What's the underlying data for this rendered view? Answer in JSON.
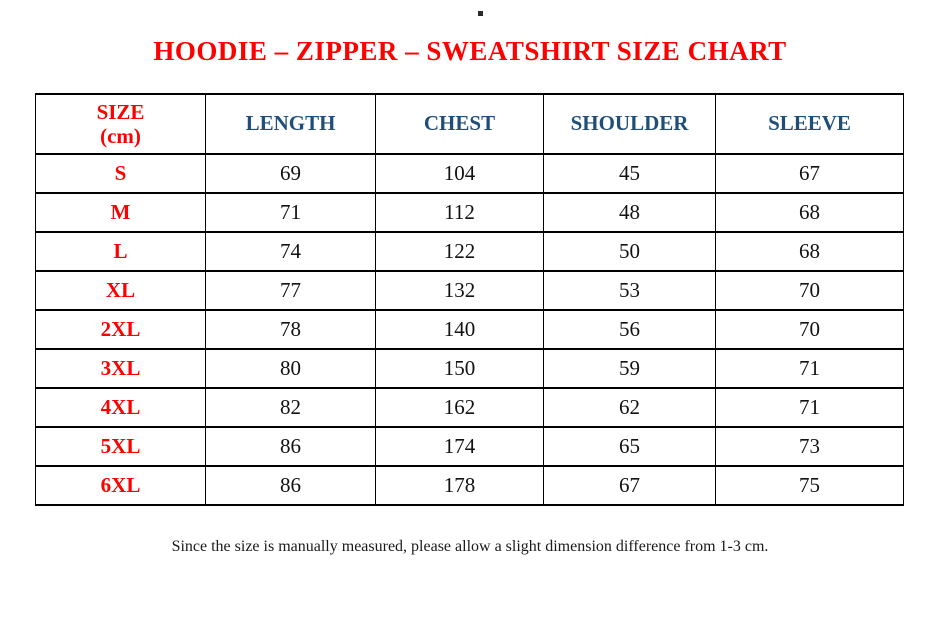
{
  "page": {
    "title": "HOODIE – ZIPPER – SWEATSHIRT SIZE CHART",
    "footer_note": "Since the size is manually measured, please allow a slight dimension difference from 1-3 cm.",
    "colors": {
      "title_red": "#ff0000",
      "header_blue": "#1f4e79",
      "size_label_red": "#ff0000",
      "value_black": "#121212",
      "border_black": "#000000",
      "background": "#ffffff"
    }
  },
  "table": {
    "size_header": {
      "line1": "SIZE",
      "line2": "(cm)"
    },
    "columns": {
      "length": "LENGTH",
      "chest": "CHEST",
      "shoulder": "SHOULDER",
      "sleeve": "SLEEVE"
    },
    "rows": [
      {
        "size": "S",
        "length": "69",
        "chest": "104",
        "shoulder": "45",
        "sleeve": "67"
      },
      {
        "size": "M",
        "length": "71",
        "chest": "112",
        "shoulder": "48",
        "sleeve": "68"
      },
      {
        "size": "L",
        "length": "74",
        "chest": "122",
        "shoulder": "50",
        "sleeve": "68"
      },
      {
        "size": "XL",
        "length": "77",
        "chest": "132",
        "shoulder": "53",
        "sleeve": "70"
      },
      {
        "size": "2XL",
        "length": "78",
        "chest": "140",
        "shoulder": "56",
        "sleeve": "70"
      },
      {
        "size": "3XL",
        "length": "80",
        "chest": "150",
        "shoulder": "59",
        "sleeve": "71"
      },
      {
        "size": "4XL",
        "length": "82",
        "chest": "162",
        "shoulder": "62",
        "sleeve": "71"
      },
      {
        "size": "5XL",
        "length": "86",
        "chest": "174",
        "shoulder": "65",
        "sleeve": "73"
      },
      {
        "size": "6XL",
        "length": "86",
        "chest": "178",
        "shoulder": "67",
        "sleeve": "75"
      }
    ]
  }
}
